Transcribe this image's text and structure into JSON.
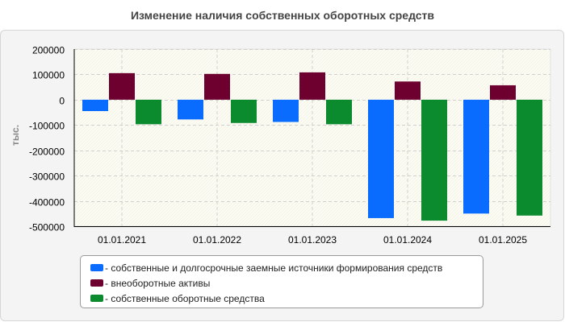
{
  "chart_data": {
    "type": "bar",
    "title": "Изменение наличия собственных оборотных средств",
    "ylabel": "тыс.",
    "xlabel": "",
    "ylim": [
      -500000,
      200000
    ],
    "yticks": [
      200000,
      100000,
      0,
      -100000,
      -200000,
      -300000,
      -400000,
      -500000
    ],
    "grid": true,
    "categories": [
      "01.01.2021",
      "01.01.2022",
      "01.01.2023",
      "01.01.2024",
      "01.01.2025"
    ],
    "series": [
      {
        "name": "собственные и долгосрочные заемные источники формирования средств",
        "color": "#0a6cff",
        "values": [
          -45000,
          -78000,
          -88000,
          -468000,
          -450000
        ]
      },
      {
        "name": "внеоборотные активы",
        "color": "#6e0030",
        "values": [
          105000,
          102000,
          108000,
          72000,
          57000
        ]
      },
      {
        "name": "собственные оборотные средства",
        "color": "#0b8a2e",
        "values": [
          -97000,
          -92000,
          -97000,
          -478000,
          -458000
        ]
      }
    ],
    "legend_position": "bottom"
  }
}
